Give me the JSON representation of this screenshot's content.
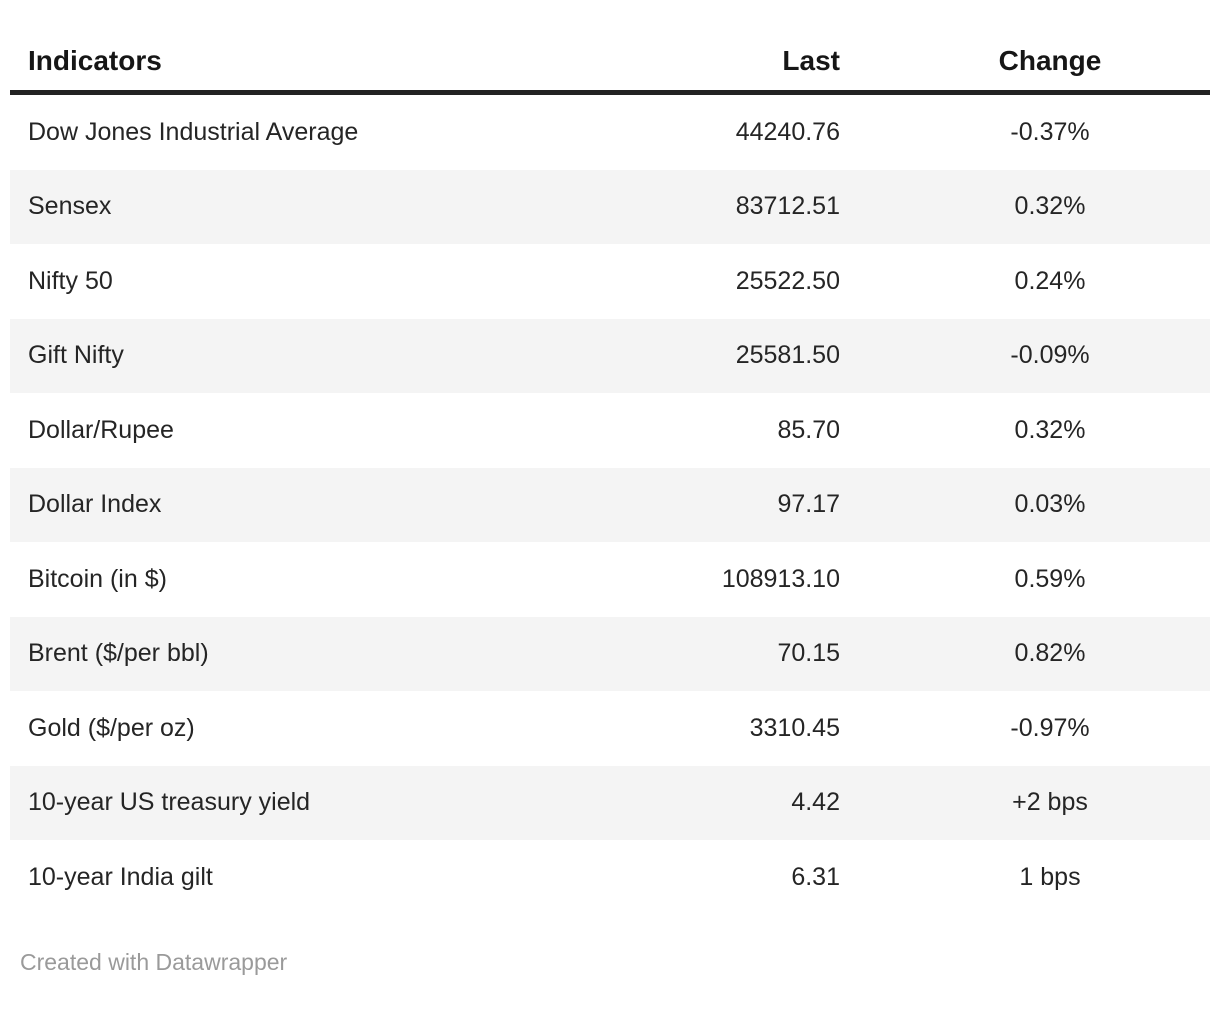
{
  "colors": {
    "background": "#ffffff",
    "text": "#252525",
    "header_text": "#161616",
    "header_rule": "#222222",
    "row_stripe": "#f4f4f4",
    "footer_text": "#9a9a9a"
  },
  "chart_data": {
    "type": "table",
    "title": "",
    "striped_rows": true,
    "columns": [
      {
        "label": "Indicators",
        "align": "left"
      },
      {
        "label": "Last",
        "align": "right"
      },
      {
        "label": "Change",
        "align": "center"
      }
    ],
    "rows": [
      [
        "Dow Jones Industrial Average",
        "44240.76",
        "-0.37%"
      ],
      [
        "Sensex",
        "83712.51",
        "0.32%"
      ],
      [
        "Nifty 50",
        "25522.50",
        "0.24%"
      ],
      [
        "Gift Nifty",
        "25581.50",
        "-0.09%"
      ],
      [
        "Dollar/Rupee",
        "85.70",
        "0.32%"
      ],
      [
        "Dollar Index",
        "97.17",
        "0.03%"
      ],
      [
        "Bitcoin (in $)",
        "108913.10",
        "0.59%"
      ],
      [
        "Brent ($/per bbl)",
        "70.15",
        "0.82%"
      ],
      [
        "Gold ($/per oz)",
        "3310.45",
        "-0.97%"
      ],
      [
        "10-year US treasury yield",
        "4.42",
        "+2 bps"
      ],
      [
        "10-year India gilt",
        "6.31",
        "1 bps"
      ]
    ]
  },
  "footer": {
    "attribution": "Created with Datawrapper"
  }
}
